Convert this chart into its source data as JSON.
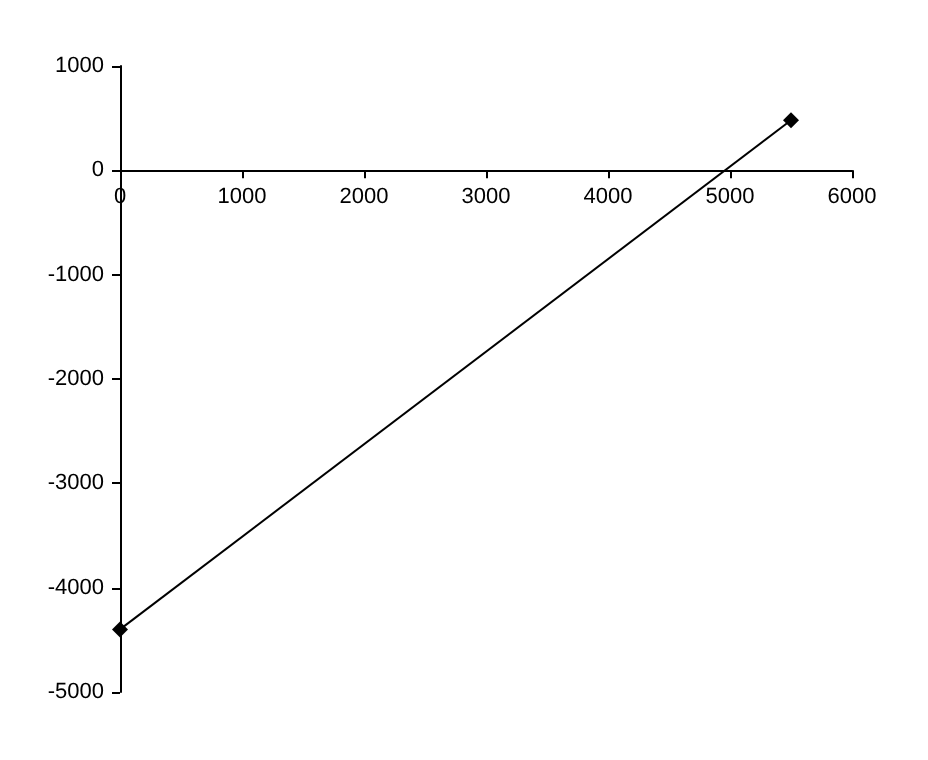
{
  "chart_data": {
    "type": "line",
    "x": [
      0,
      5500
    ],
    "series": [
      {
        "color": "#000000",
        "values": [
          -4400,
          480
        ]
      }
    ],
    "xlim": [
      0,
      6000
    ],
    "xticks": [
      0,
      1000,
      2000,
      3000,
      4000,
      5000,
      6000
    ],
    "ylim": [
      -5000,
      1000
    ],
    "yticks": [
      -5000,
      -4000,
      -3000,
      -2000,
      -1000,
      0,
      1000
    ],
    "grid": false,
    "marker": "diamond",
    "line_style": "solid"
  }
}
